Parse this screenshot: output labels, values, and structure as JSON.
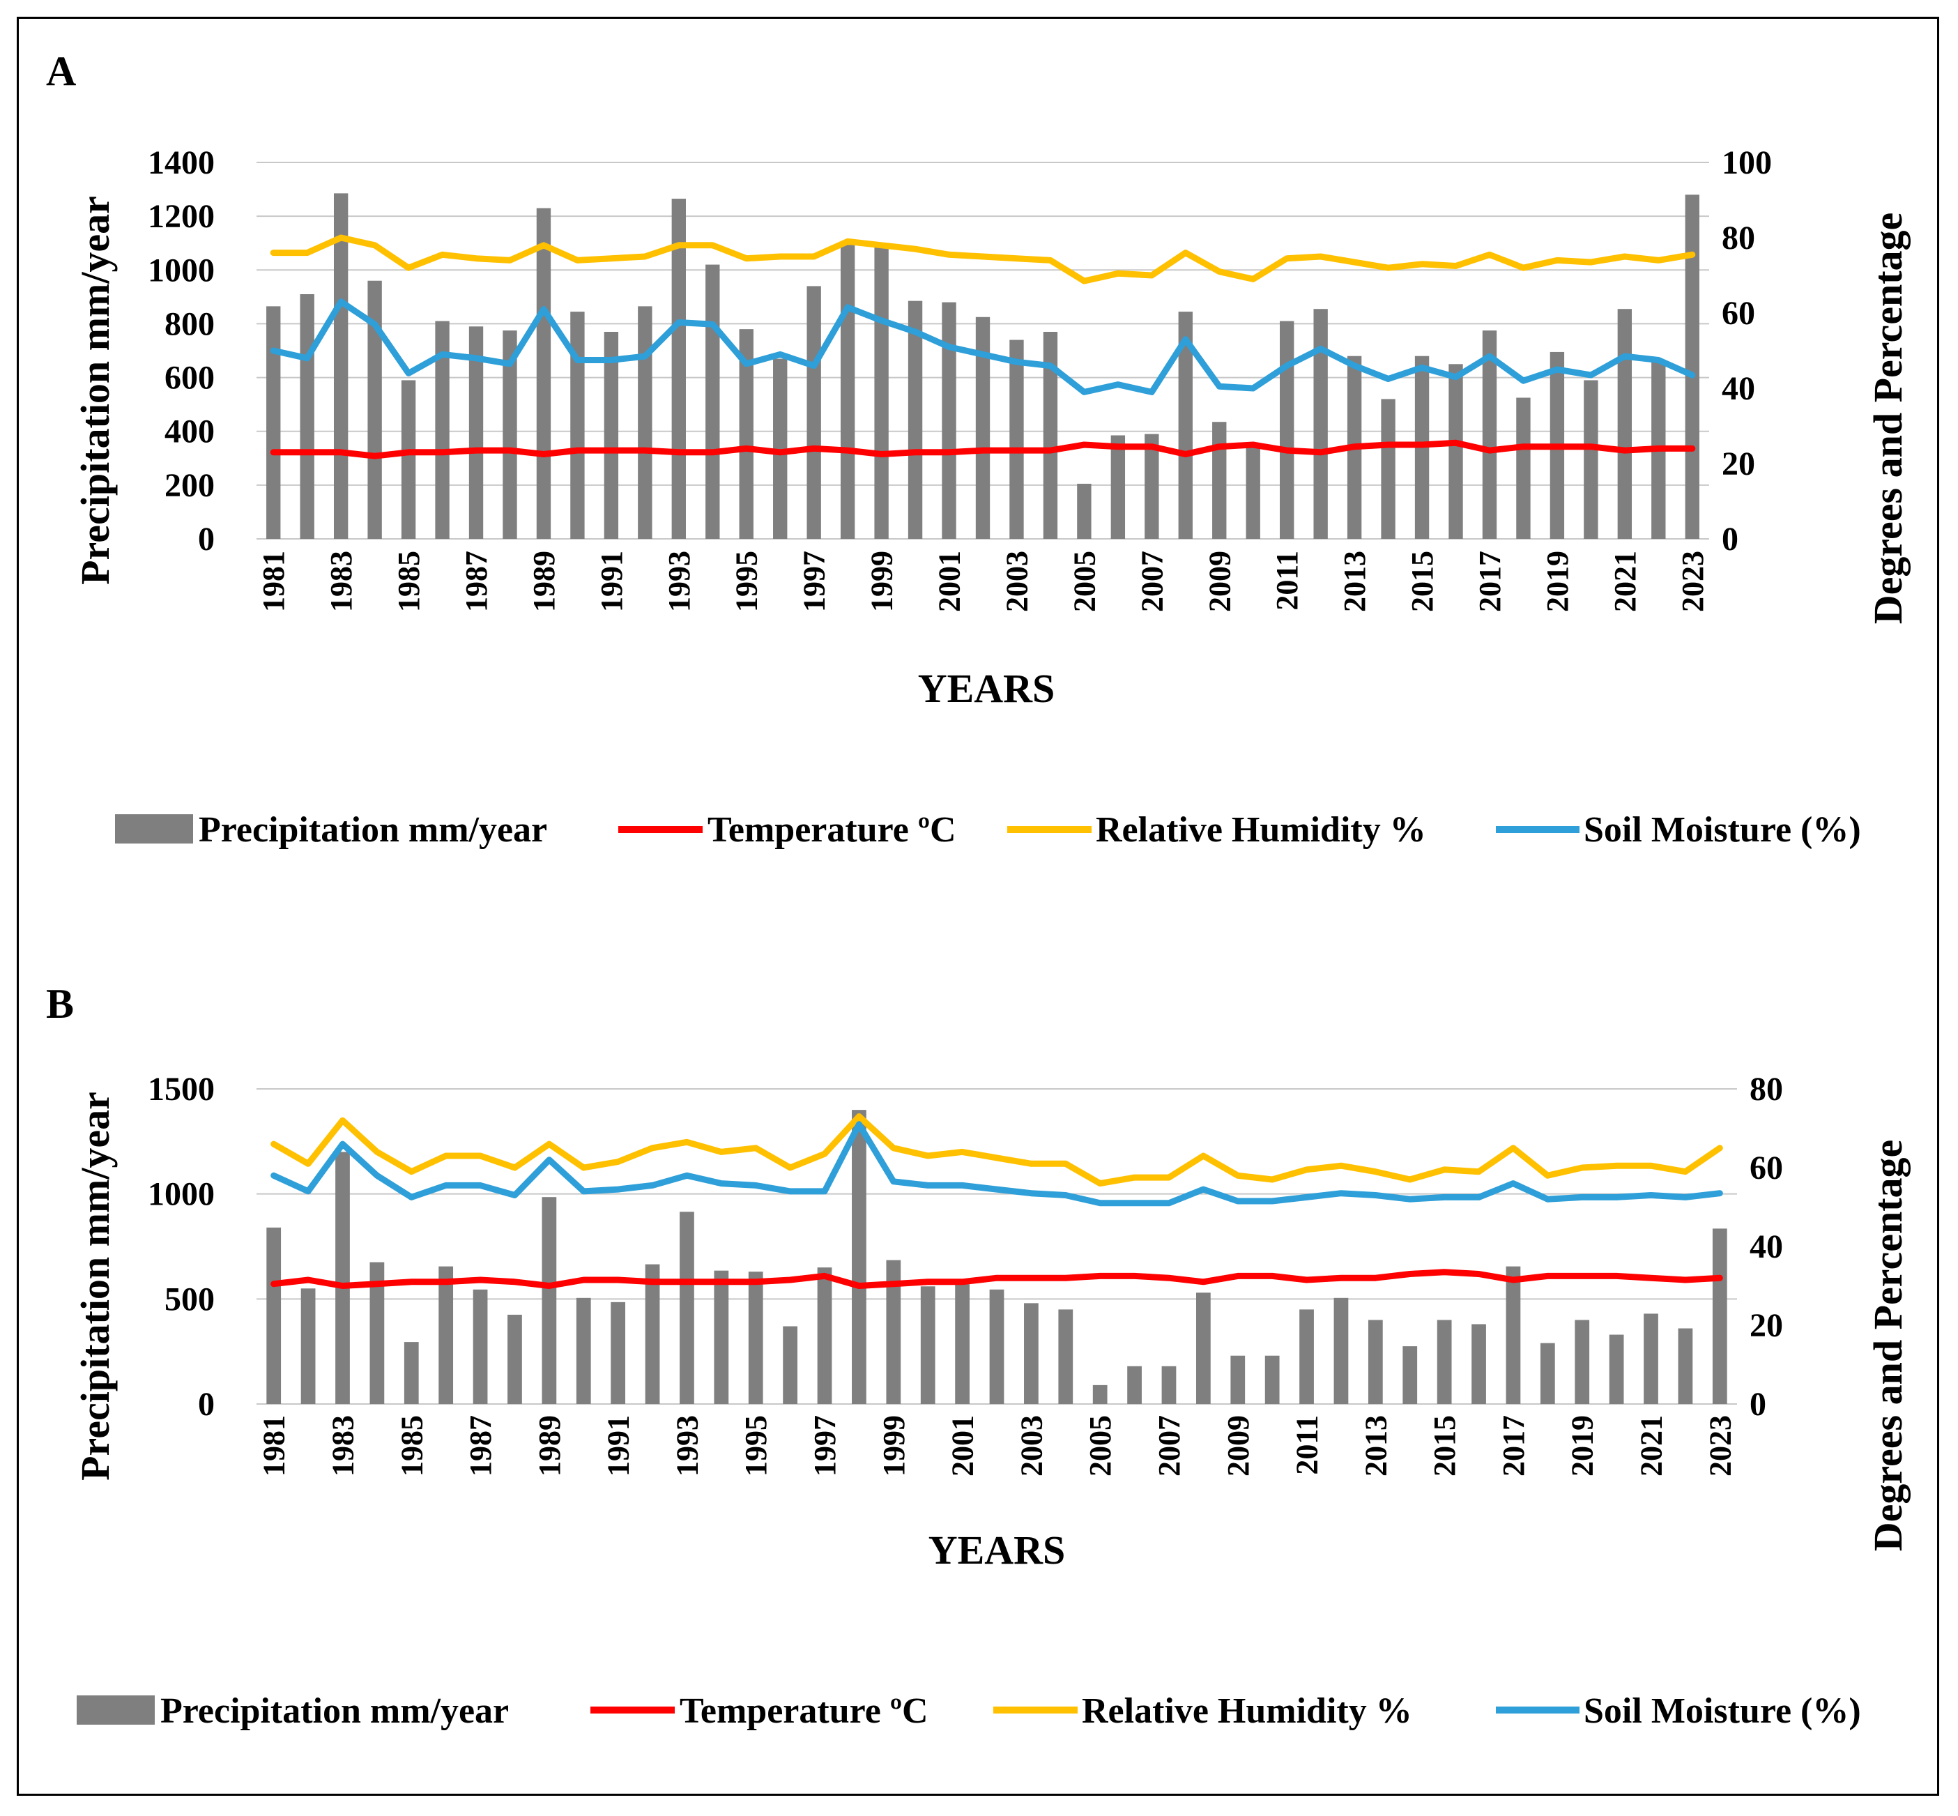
{
  "colors": {
    "bar": "#7f7f7f",
    "temperature": "#ff0000",
    "humidity": "#ffc000",
    "soil": "#2e9fd8",
    "grid": "#c8c8c8"
  },
  "chart_data": [
    {
      "panel": "A",
      "type": "bar",
      "xlabel": "YEARS",
      "ylabel": "Precipitation mm/year",
      "y2label": "Degrees and Percentage",
      "ylim": [
        0,
        1400
      ],
      "yticks": [
        0,
        200,
        400,
        600,
        800,
        1000,
        1200,
        1400
      ],
      "y2lim": [
        0,
        100
      ],
      "y2ticks": [
        0,
        20,
        40,
        60,
        80,
        100
      ],
      "categories": [
        1981,
        1982,
        1983,
        1984,
        1985,
        1986,
        1987,
        1988,
        1989,
        1990,
        1991,
        1992,
        1993,
        1994,
        1995,
        1996,
        1997,
        1998,
        1999,
        2000,
        2001,
        2002,
        2003,
        2004,
        2005,
        2006,
        2007,
        2008,
        2009,
        2010,
        2011,
        2012,
        2013,
        2014,
        2015,
        2016,
        2017,
        2018,
        2019,
        2020,
        2021,
        2022,
        2023
      ],
      "xtick_labels": [
        "1981",
        "1983",
        "1985",
        "1987",
        "1989",
        "1991",
        "1993",
        "1995",
        "1997",
        "1999",
        "2001",
        "2003",
        "2005",
        "2007",
        "2009",
        "2011",
        "2013",
        "2015",
        "2017",
        "2019",
        "2021",
        "2023"
      ],
      "series": [
        {
          "name": "Precipitation mm/year",
          "kind": "bar",
          "axis": "left",
          "values": [
            865,
            910,
            1285,
            960,
            590,
            810,
            790,
            775,
            1230,
            845,
            770,
            865,
            1265,
            1020,
            780,
            670,
            940,
            1105,
            1085,
            885,
            880,
            825,
            740,
            770,
            205,
            385,
            390,
            845,
            435,
            350,
            810,
            855,
            680,
            520,
            680,
            650,
            775,
            525,
            695,
            590,
            855,
            665,
            1280
          ]
        },
        {
          "name": "Temperature ºC",
          "kind": "line",
          "axis": "right",
          "values": [
            23,
            23,
            23,
            22,
            23,
            23,
            23.5,
            23.5,
            22.5,
            23.5,
            23.5,
            23.5,
            23,
            23,
            24,
            23,
            24,
            23.5,
            22.5,
            23,
            23,
            23.5,
            23.5,
            23.5,
            25,
            24.5,
            24.5,
            22.5,
            24.5,
            25,
            23.5,
            23,
            24.5,
            25,
            25,
            25.5,
            23.5,
            24.5,
            24.5,
            24.5,
            23.5,
            24,
            24
          ]
        },
        {
          "name": "Relative Humidity %",
          "kind": "line",
          "axis": "right",
          "values": [
            76,
            76,
            80,
            78,
            72,
            75.5,
            74.5,
            74,
            78,
            74,
            74.5,
            75,
            78,
            78,
            74.5,
            75,
            75,
            79,
            78,
            77,
            75.5,
            75,
            74.5,
            74,
            68.5,
            70.5,
            70,
            76,
            71,
            69,
            74.5,
            75,
            73.5,
            72,
            73,
            72.5,
            75.5,
            72,
            74,
            73.5,
            75,
            74,
            75.5
          ]
        },
        {
          "name": "Soil Moisture (%)",
          "kind": "line",
          "axis": "right",
          "values": [
            50,
            48,
            63,
            57,
            44,
            49,
            48,
            46.5,
            61,
            47.5,
            47.5,
            48.5,
            57.5,
            57,
            46.5,
            49,
            46,
            61.5,
            58,
            55,
            51,
            49,
            47,
            46,
            39,
            41,
            39,
            53,
            40.5,
            40,
            46,
            50.5,
            46,
            42.5,
            45.5,
            43,
            48.5,
            42,
            45,
            43.5,
            48.5,
            47.5,
            43.5
          ]
        }
      ]
    },
    {
      "panel": "B",
      "type": "bar",
      "xlabel": "YEARS",
      "ylabel": "Precipitation mm/year",
      "y2label": "Degrees and Percentage",
      "ylim": [
        0,
        1500
      ],
      "yticks": [
        0,
        500,
        1000,
        1500
      ],
      "y2lim": [
        0,
        80
      ],
      "y2ticks": [
        0,
        20,
        40,
        60,
        80
      ],
      "categories": [
        1981,
        1982,
        1983,
        1984,
        1985,
        1986,
        1987,
        1988,
        1989,
        1990,
        1991,
        1992,
        1993,
        1994,
        1995,
        1996,
        1997,
        1998,
        1999,
        2000,
        2001,
        2002,
        2003,
        2004,
        2005,
        2006,
        2007,
        2008,
        2009,
        2010,
        2011,
        2012,
        2013,
        2014,
        2015,
        2016,
        2017,
        2018,
        2019,
        2020,
        2021,
        2022,
        2023
      ],
      "xtick_labels": [
        "1981",
        "1983",
        "1985",
        "1987",
        "1989",
        "1991",
        "1993",
        "1995",
        "1997",
        "1999",
        "2001",
        "2003",
        "2005",
        "2007",
        "2009",
        "2011",
        "2013",
        "2015",
        "2017",
        "2019",
        "2021",
        "2023"
      ],
      "series": [
        {
          "name": "Precipitation mm/year",
          "kind": "bar",
          "axis": "left",
          "values": [
            840,
            550,
            1200,
            675,
            295,
            655,
            545,
            425,
            985,
            505,
            485,
            665,
            915,
            635,
            630,
            370,
            650,
            1400,
            685,
            560,
            570,
            545,
            480,
            450,
            90,
            180,
            180,
            530,
            230,
            230,
            450,
            505,
            400,
            275,
            400,
            380,
            655,
            290,
            400,
            330,
            430,
            360,
            835
          ]
        },
        {
          "name": "Temperature ºC",
          "kind": "line",
          "axis": "right",
          "values": [
            30.5,
            31.5,
            30,
            30.5,
            31,
            31,
            31.5,
            31,
            30,
            31.5,
            31.5,
            31,
            31,
            31,
            31,
            31.5,
            32.5,
            30,
            30.5,
            31,
            31,
            32,
            32,
            32,
            32.5,
            32.5,
            32,
            31,
            32.5,
            32.5,
            31.5,
            32,
            32,
            33,
            33.5,
            33,
            31.5,
            32.5,
            32.5,
            32.5,
            32,
            31.5,
            32
          ]
        },
        {
          "name": "Relative Humidity %",
          "kind": "line",
          "axis": "right",
          "values": [
            66,
            61,
            72,
            64,
            59,
            63,
            63,
            60,
            66,
            60,
            61.5,
            65,
            66.5,
            64,
            65,
            60,
            63.5,
            73,
            65,
            63,
            64,
            62.5,
            61,
            61,
            56,
            57.5,
            57.5,
            63,
            58,
            57,
            59.5,
            60.5,
            59,
            57,
            59.5,
            59,
            65,
            58,
            60,
            60.5,
            60.5,
            59,
            65
          ]
        },
        {
          "name": "Soil Moisture (%)",
          "kind": "line",
          "axis": "right",
          "values": [
            58,
            54,
            66,
            58,
            52.5,
            55.5,
            55.5,
            53,
            62,
            54,
            54.5,
            55.5,
            58,
            56,
            55.5,
            54,
            54,
            71,
            56.5,
            55.5,
            55.5,
            54.5,
            53.5,
            53,
            51,
            51,
            51,
            54.5,
            51.5,
            51.5,
            52.5,
            53.5,
            53,
            52,
            52.5,
            52.5,
            56,
            52,
            52.5,
            52.5,
            53,
            52.5,
            53.5
          ]
        }
      ]
    }
  ]
}
